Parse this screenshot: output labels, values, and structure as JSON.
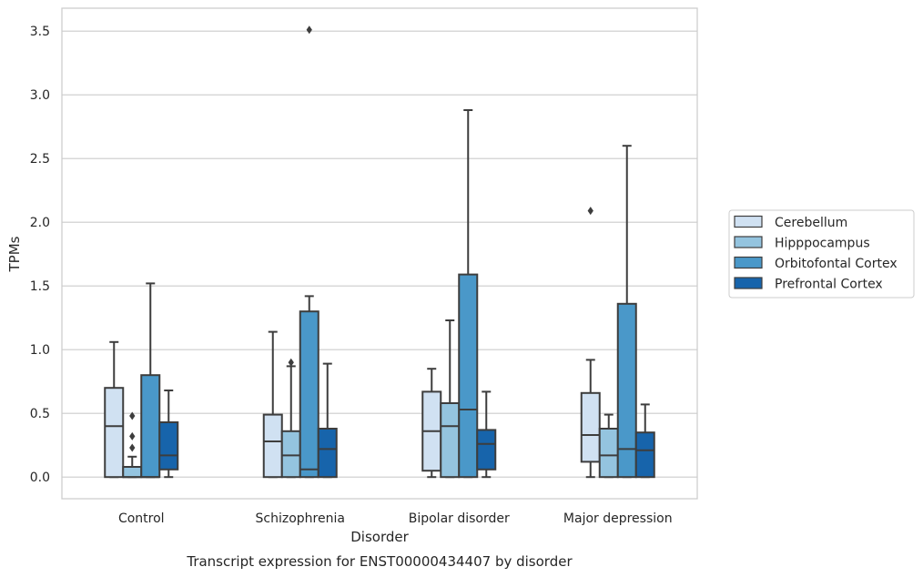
{
  "chart_data": {
    "type": "box",
    "caption": "Transcript expression for ENST00000434407 by disorder",
    "xlabel": "Disorder",
    "ylabel": "TPMs",
    "ylim": [
      -0.17,
      3.68
    ],
    "yticks": [
      0.0,
      0.5,
      1.0,
      1.5,
      2.0,
      2.5,
      3.0,
      3.5
    ],
    "ytick_labels": [
      "0.0",
      "0.5",
      "1.0",
      "1.5",
      "2.0",
      "2.5",
      "3.0",
      "3.5"
    ],
    "grid": "horizontal",
    "legend_position": "right",
    "categories": [
      "Control",
      "Schizophrenia",
      "Bipolar disorder",
      "Major depression"
    ],
    "series": [
      {
        "name": "Cerebellum",
        "color": "#d0e1f2",
        "boxes": [
          {
            "whislo": 0.0,
            "q1": 0.0,
            "med": 0.4,
            "q3": 0.7,
            "whishi": 1.06,
            "fliers": []
          },
          {
            "whislo": 0.0,
            "q1": 0.0,
            "med": 0.28,
            "q3": 0.49,
            "whishi": 1.14,
            "fliers": []
          },
          {
            "whislo": 0.0,
            "q1": 0.05,
            "med": 0.36,
            "q3": 0.67,
            "whishi": 0.85,
            "fliers": []
          },
          {
            "whislo": 0.0,
            "q1": 0.12,
            "med": 0.33,
            "q3": 0.66,
            "whishi": 0.92,
            "fliers": [
              2.09
            ]
          }
        ]
      },
      {
        "name": "Hipppocampus",
        "color": "#94c4df",
        "boxes": [
          {
            "whislo": 0.0,
            "q1": 0.0,
            "med": 0.0,
            "q3": 0.08,
            "whishi": 0.16,
            "fliers": [
              0.23,
              0.32,
              0.48
            ]
          },
          {
            "whislo": 0.0,
            "q1": 0.0,
            "med": 0.17,
            "q3": 0.36,
            "whishi": 0.87,
            "fliers": [
              0.9
            ]
          },
          {
            "whislo": 0.0,
            "q1": 0.0,
            "med": 0.4,
            "q3": 0.58,
            "whishi": 1.23,
            "fliers": []
          },
          {
            "whislo": 0.0,
            "q1": 0.0,
            "med": 0.17,
            "q3": 0.38,
            "whishi": 0.49,
            "fliers": []
          }
        ]
      },
      {
        "name": "Orbitofontal Cortex",
        "color": "#4a98c9",
        "boxes": [
          {
            "whislo": 0.0,
            "q1": 0.0,
            "med": 0.0,
            "q3": 0.8,
            "whishi": 1.52,
            "fliers": []
          },
          {
            "whislo": 0.0,
            "q1": 0.0,
            "med": 0.06,
            "q3": 1.3,
            "whishi": 1.42,
            "fliers": [
              3.51
            ]
          },
          {
            "whislo": 0.0,
            "q1": 0.0,
            "med": 0.53,
            "q3": 1.59,
            "whishi": 2.88,
            "fliers": []
          },
          {
            "whislo": 0.0,
            "q1": 0.0,
            "med": 0.22,
            "q3": 1.36,
            "whishi": 2.6,
            "fliers": []
          }
        ]
      },
      {
        "name": "Prefrontal Cortex",
        "color": "#1764ab",
        "boxes": [
          {
            "whislo": 0.0,
            "q1": 0.06,
            "med": 0.17,
            "q3": 0.43,
            "whishi": 0.68,
            "fliers": []
          },
          {
            "whislo": 0.0,
            "q1": 0.0,
            "med": 0.22,
            "q3": 0.38,
            "whishi": 0.89,
            "fliers": []
          },
          {
            "whislo": 0.0,
            "q1": 0.06,
            "med": 0.26,
            "q3": 0.37,
            "whishi": 0.67,
            "fliers": []
          },
          {
            "whislo": 0.0,
            "q1": 0.0,
            "med": 0.21,
            "q3": 0.35,
            "whishi": 0.57,
            "fliers": []
          }
        ]
      }
    ]
  }
}
